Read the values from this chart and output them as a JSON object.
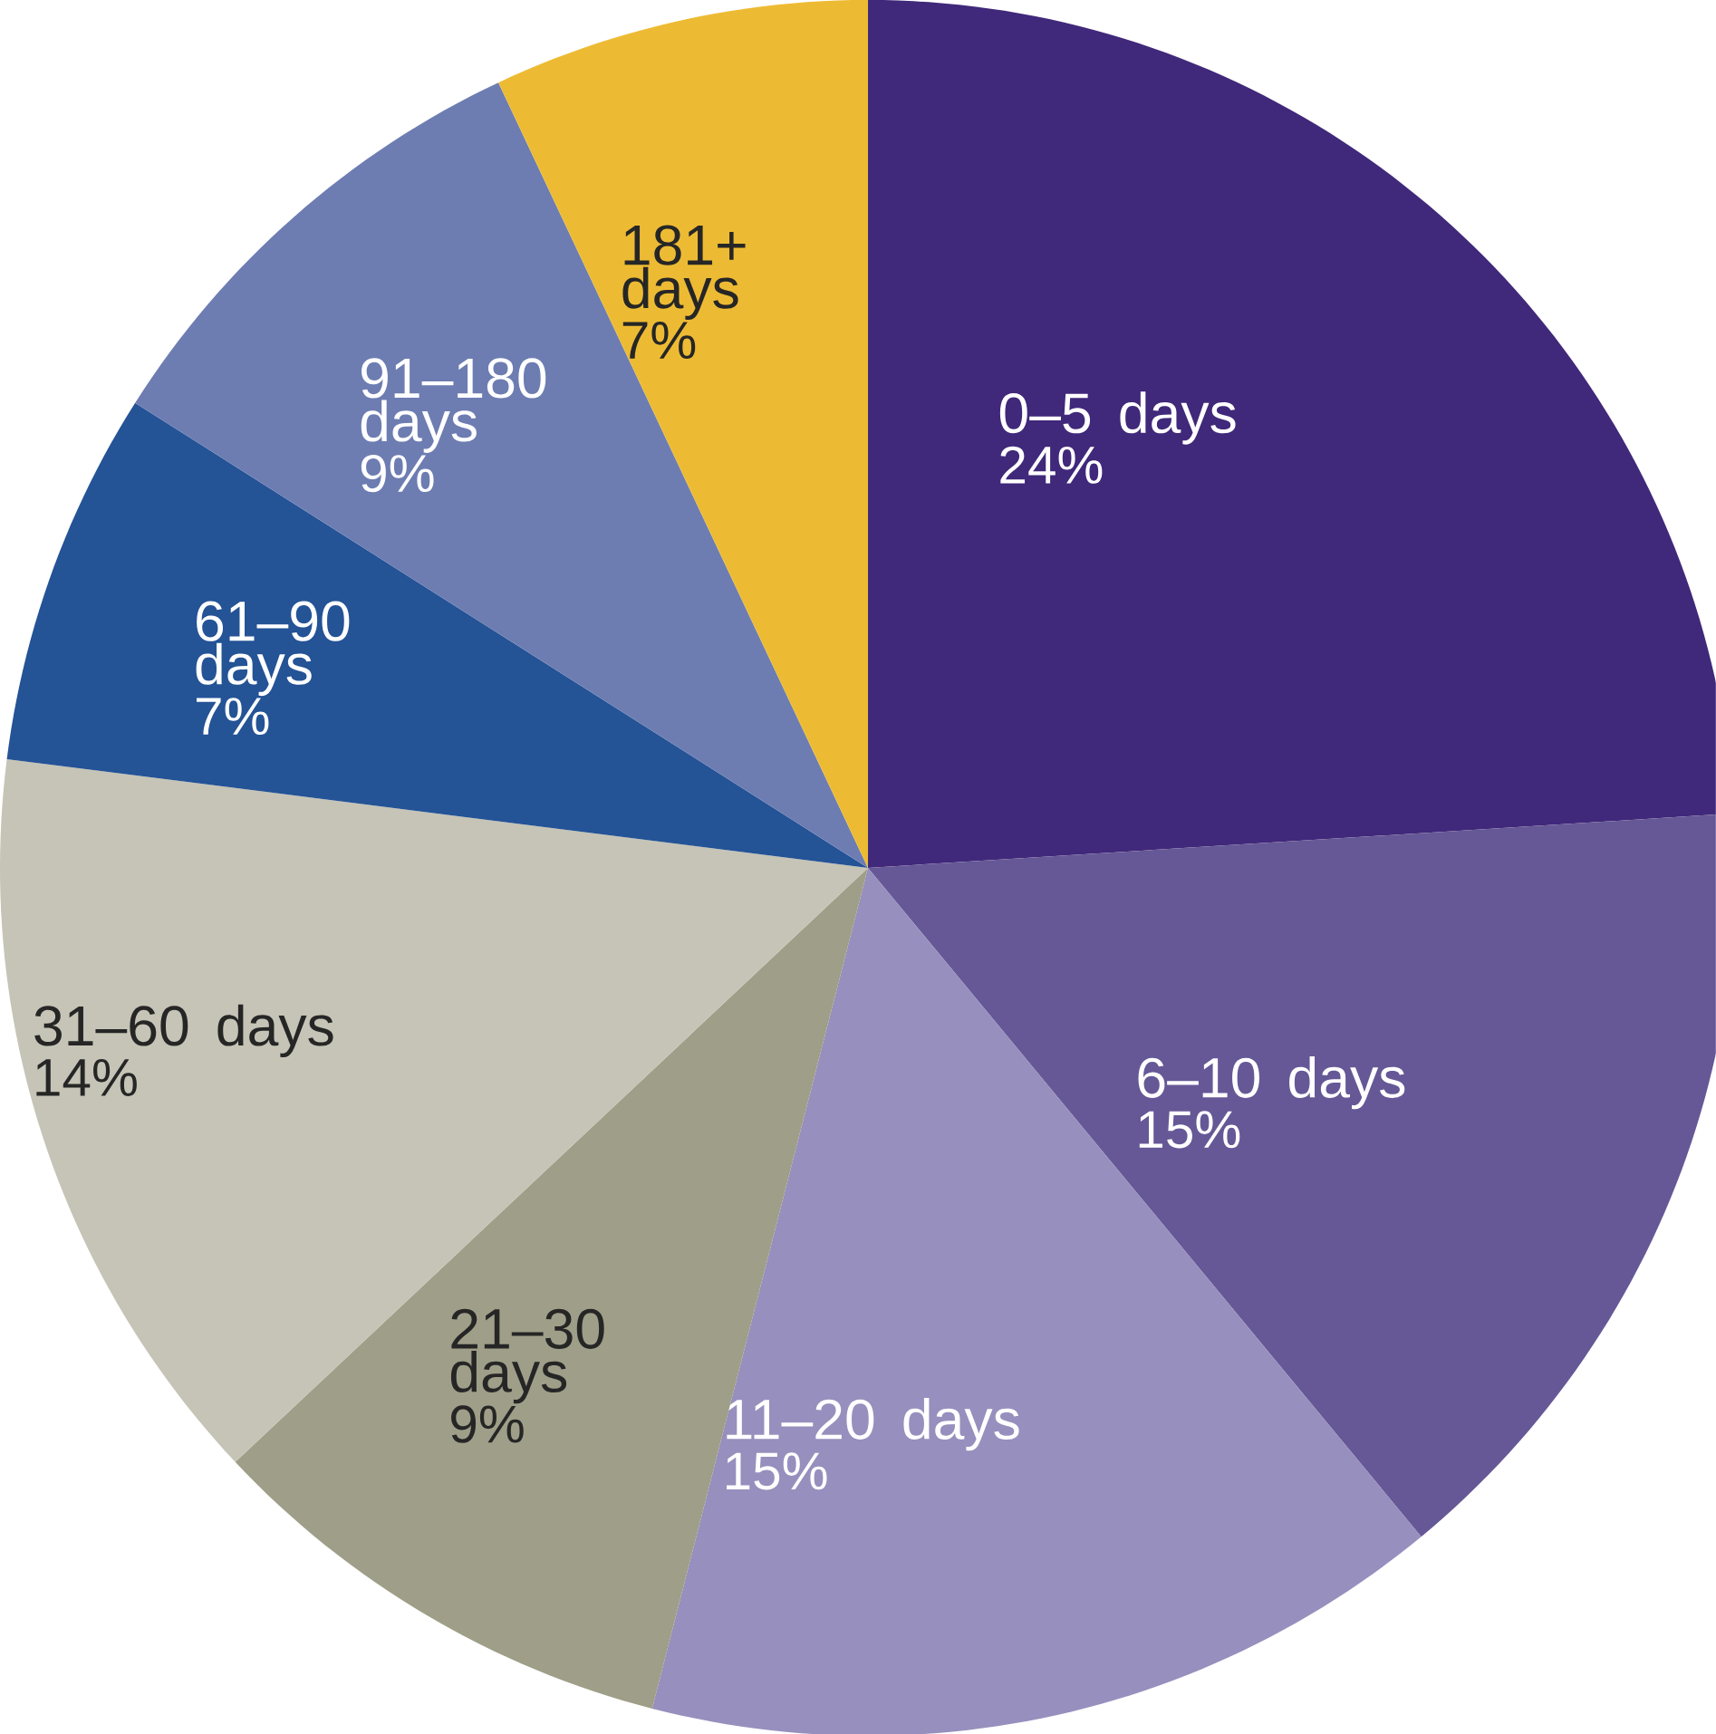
{
  "chart_data": {
    "type": "pie",
    "categories": [
      "0–5 days",
      "6–10 days",
      "11–20 days",
      "21–30 days",
      "31–60 days",
      "61–90 days",
      "91–180 days",
      "181+ days"
    ],
    "values": [
      24,
      15,
      15,
      9,
      14,
      7,
      9,
      7
    ],
    "value_labels": [
      "24%",
      "15%",
      "15%",
      "9%",
      "14%",
      "7%",
      "9%",
      "7%"
    ],
    "colors": [
      "#40287a",
      "#665896",
      "#978fbd",
      "#9f9e88",
      "#c5c4b6",
      "#245396",
      "#6d7db2",
      "#edbb33"
    ]
  }
}
